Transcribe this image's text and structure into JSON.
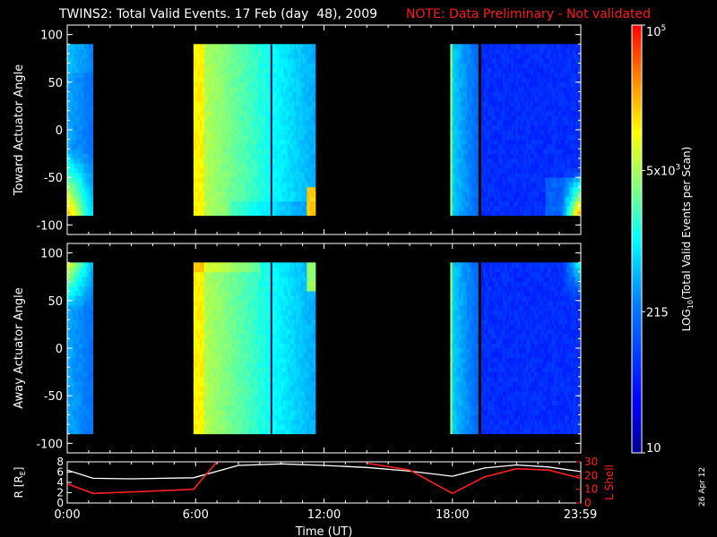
{
  "title": {
    "main": "TWINS2: Total Valid Events. 17 Feb (day  48), 2009",
    "note": "NOTE: Data Preliminary - Not validated",
    "note_color": "#ff1a1a"
  },
  "datestamp": "26 Apr 12",
  "chart_data": [
    {
      "type": "heatmap",
      "panel": "toward",
      "ylabel": "Toward Actuator Angle",
      "ylim": [
        -110,
        110
      ],
      "yticks": [
        "100",
        "50",
        "0",
        "-50",
        "-100"
      ],
      "ytick_values": [
        100,
        50,
        0,
        -50,
        -100
      ],
      "xlim_hours": [
        0,
        24
      ],
      "data_blocks_hours": [
        [
          0.0,
          1.25
        ],
        [
          5.9,
          11.6
        ],
        [
          17.9,
          19.2
        ],
        [
          19.35,
          24.0
        ]
      ],
      "angle_range": [
        -90,
        90
      ]
    },
    {
      "type": "heatmap",
      "panel": "away",
      "ylabel": "Away Actuator Angle",
      "ylim": [
        -110,
        110
      ],
      "yticks": [
        "100",
        "50",
        "0",
        "-50",
        "-100"
      ],
      "ytick_values": [
        100,
        50,
        0,
        -50,
        -100
      ],
      "xlim_hours": [
        0,
        24
      ],
      "data_blocks_hours": [
        [
          0.0,
          1.25
        ],
        [
          5.9,
          11.6
        ],
        [
          17.9,
          19.2
        ],
        [
          19.35,
          24.0
        ]
      ],
      "angle_range": [
        -90,
        90
      ]
    },
    {
      "type": "line",
      "panel": "orbit",
      "ylabel_left": "R [R",
      "ylabel_left_sub": "E",
      "ylabel_left_end": "]",
      "ylabel_right": "L Shell",
      "left_ylim": [
        0,
        8
      ],
      "right_ylim": [
        0,
        30
      ],
      "left_yticks": [
        "8",
        "6",
        "4",
        "2",
        "0"
      ],
      "left_ytick_values": [
        8,
        6,
        4,
        2,
        0
      ],
      "right_yticks": [
        "30",
        "20",
        "10",
        "0"
      ],
      "right_ytick_values": [
        30,
        20,
        10,
        0
      ],
      "xlabel": "Time (UT)",
      "xticks": [
        "0:00",
        "6:00",
        "12:00",
        "18:00",
        "23:59"
      ],
      "xtick_values": [
        0,
        6,
        12,
        18,
        23.98
      ],
      "series": [
        {
          "name": "R",
          "color": "#ffffff",
          "x": [
            0,
            1.2,
            3,
            5.9,
            8,
            10,
            12,
            14,
            16,
            18,
            19.5,
            21,
            22.5,
            24
          ],
          "y": [
            6.4,
            4.8,
            4.7,
            4.9,
            7.3,
            7.6,
            7.3,
            6.9,
            6.2,
            5.2,
            6.8,
            7.4,
            7.0,
            6.1
          ]
        },
        {
          "name": "L Shell",
          "color": "#ff2020",
          "segments": [
            {
              "x": [
                0,
                1.2,
                3,
                5.9,
                7.0
              ],
              "y": [
                14,
                7,
                8,
                10,
                30
              ]
            },
            {
              "x": [
                14.0,
                16,
                18,
                19.5,
                21,
                22.5,
                24
              ],
              "y": [
                29,
                24,
                7,
                19,
                25,
                24,
                18
              ]
            }
          ]
        }
      ]
    }
  ],
  "colorbar": {
    "label_parts": [
      "LOG",
      "10",
      "(Total Valid  Events per Scan)"
    ],
    "ticks": [
      {
        "text": "10",
        "sup": "5",
        "pos": 1.0
      },
      {
        "text": "5x10",
        "sup": "3",
        "pos": 0.66
      },
      {
        "text": "215",
        "sup": "",
        "pos": 0.33
      },
      {
        "text": "10",
        "sup": "",
        "pos": 0.0
      }
    ]
  }
}
